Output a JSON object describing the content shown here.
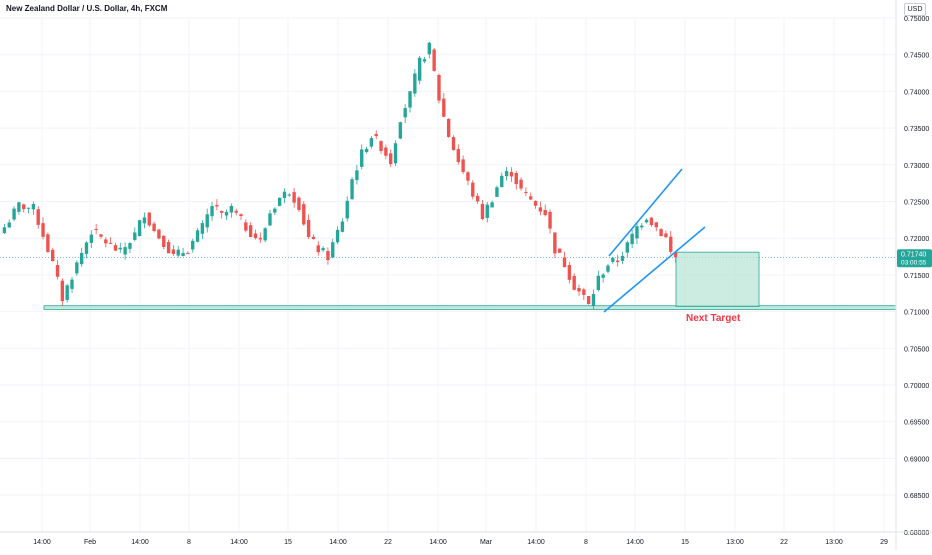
{
  "header": {
    "symbol_title": "New Zealand Dollar / U.S. Dollar, 4h, FXCM",
    "currency_label": "USD"
  },
  "colors": {
    "up": "#26a69a",
    "down": "#ef5350",
    "trendline": "#2196f3",
    "zone_fill": "#b7e4d4",
    "zone_stroke": "#26a69a",
    "target_text": "#f23645",
    "price_tag_bg": "#26a69a"
  },
  "price_tag": {
    "price": "0.71740",
    "countdown": "03:00:55"
  },
  "annotation": {
    "label": "Next Target"
  },
  "chart_data": {
    "type": "candlestick",
    "y_axis": {
      "range": [
        0.68,
        0.75
      ],
      "ticks": [
        "0.75000",
        "0.74500",
        "0.74000",
        "0.73500",
        "0.73000",
        "0.72500",
        "0.72000",
        "0.71500",
        "0.71000",
        "0.70500",
        "0.70000",
        "0.69500",
        "0.69000",
        "0.68500",
        "0.68000"
      ]
    },
    "x_axis": {
      "ticks": [
        "14:00",
        "Feb",
        "14:00",
        "8",
        "14:00",
        "15",
        "14:00",
        "22",
        "14:00",
        "Mar",
        "14:00",
        "8",
        "14:00",
        "15",
        "13:00",
        "22",
        "13:00",
        "29"
      ]
    },
    "support_zone": {
      "from": 0.7103,
      "to": 0.7108
    },
    "target_zone": {
      "from": 0.7107,
      "to": 0.7181
    },
    "last_price": 0.7174,
    "close_path": [
      [
        0,
        0.7215
      ],
      [
        3,
        0.7245
      ],
      [
        6,
        0.724
      ],
      [
        8,
        0.7205
      ],
      [
        10,
        0.7165
      ],
      [
        12,
        0.7118
      ],
      [
        15,
        0.7165
      ],
      [
        18,
        0.721
      ],
      [
        21,
        0.7195
      ],
      [
        24,
        0.718
      ],
      [
        27,
        0.7205
      ],
      [
        29,
        0.7235
      ],
      [
        31,
        0.721
      ],
      [
        33,
        0.7195
      ],
      [
        35,
        0.7175
      ],
      [
        38,
        0.7185
      ],
      [
        41,
        0.7215
      ],
      [
        43,
        0.7245
      ],
      [
        45,
        0.723
      ],
      [
        47,
        0.724
      ],
      [
        50,
        0.7215
      ],
      [
        53,
        0.7195
      ],
      [
        55,
        0.7235
      ],
      [
        57,
        0.7255
      ],
      [
        59,
        0.7265
      ],
      [
        61,
        0.7245
      ],
      [
        63,
        0.72
      ],
      [
        65,
        0.7185
      ],
      [
        67,
        0.7175
      ],
      [
        70,
        0.7225
      ],
      [
        72,
        0.728
      ],
      [
        74,
        0.7315
      ],
      [
        76,
        0.734
      ],
      [
        78,
        0.7325
      ],
      [
        80,
        0.7305
      ],
      [
        82,
        0.7365
      ],
      [
        84,
        0.7395
      ],
      [
        86,
        0.744
      ],
      [
        88,
        0.746
      ],
      [
        89,
        0.7425
      ],
      [
        90,
        0.739
      ],
      [
        92,
        0.734
      ],
      [
        94,
        0.7305
      ],
      [
        96,
        0.7275
      ],
      [
        98,
        0.7245
      ],
      [
        99,
        0.723
      ],
      [
        101,
        0.7255
      ],
      [
        103,
        0.7285
      ],
      [
        105,
        0.729
      ],
      [
        107,
        0.7265
      ],
      [
        108,
        0.7258
      ],
      [
        110,
        0.7245
      ],
      [
        112,
        0.7235
      ],
      [
        114,
        0.7185
      ],
      [
        116,
        0.7165
      ],
      [
        118,
        0.7135
      ],
      [
        120,
        0.712
      ],
      [
        121,
        0.7108
      ],
      [
        123,
        0.7145
      ],
      [
        125,
        0.7165
      ],
      [
        127,
        0.717
      ],
      [
        129,
        0.719
      ],
      [
        131,
        0.7215
      ],
      [
        133,
        0.723
      ],
      [
        135,
        0.7215
      ],
      [
        137,
        0.72
      ],
      [
        138,
        0.718
      ],
      [
        139,
        0.7174
      ]
    ]
  }
}
